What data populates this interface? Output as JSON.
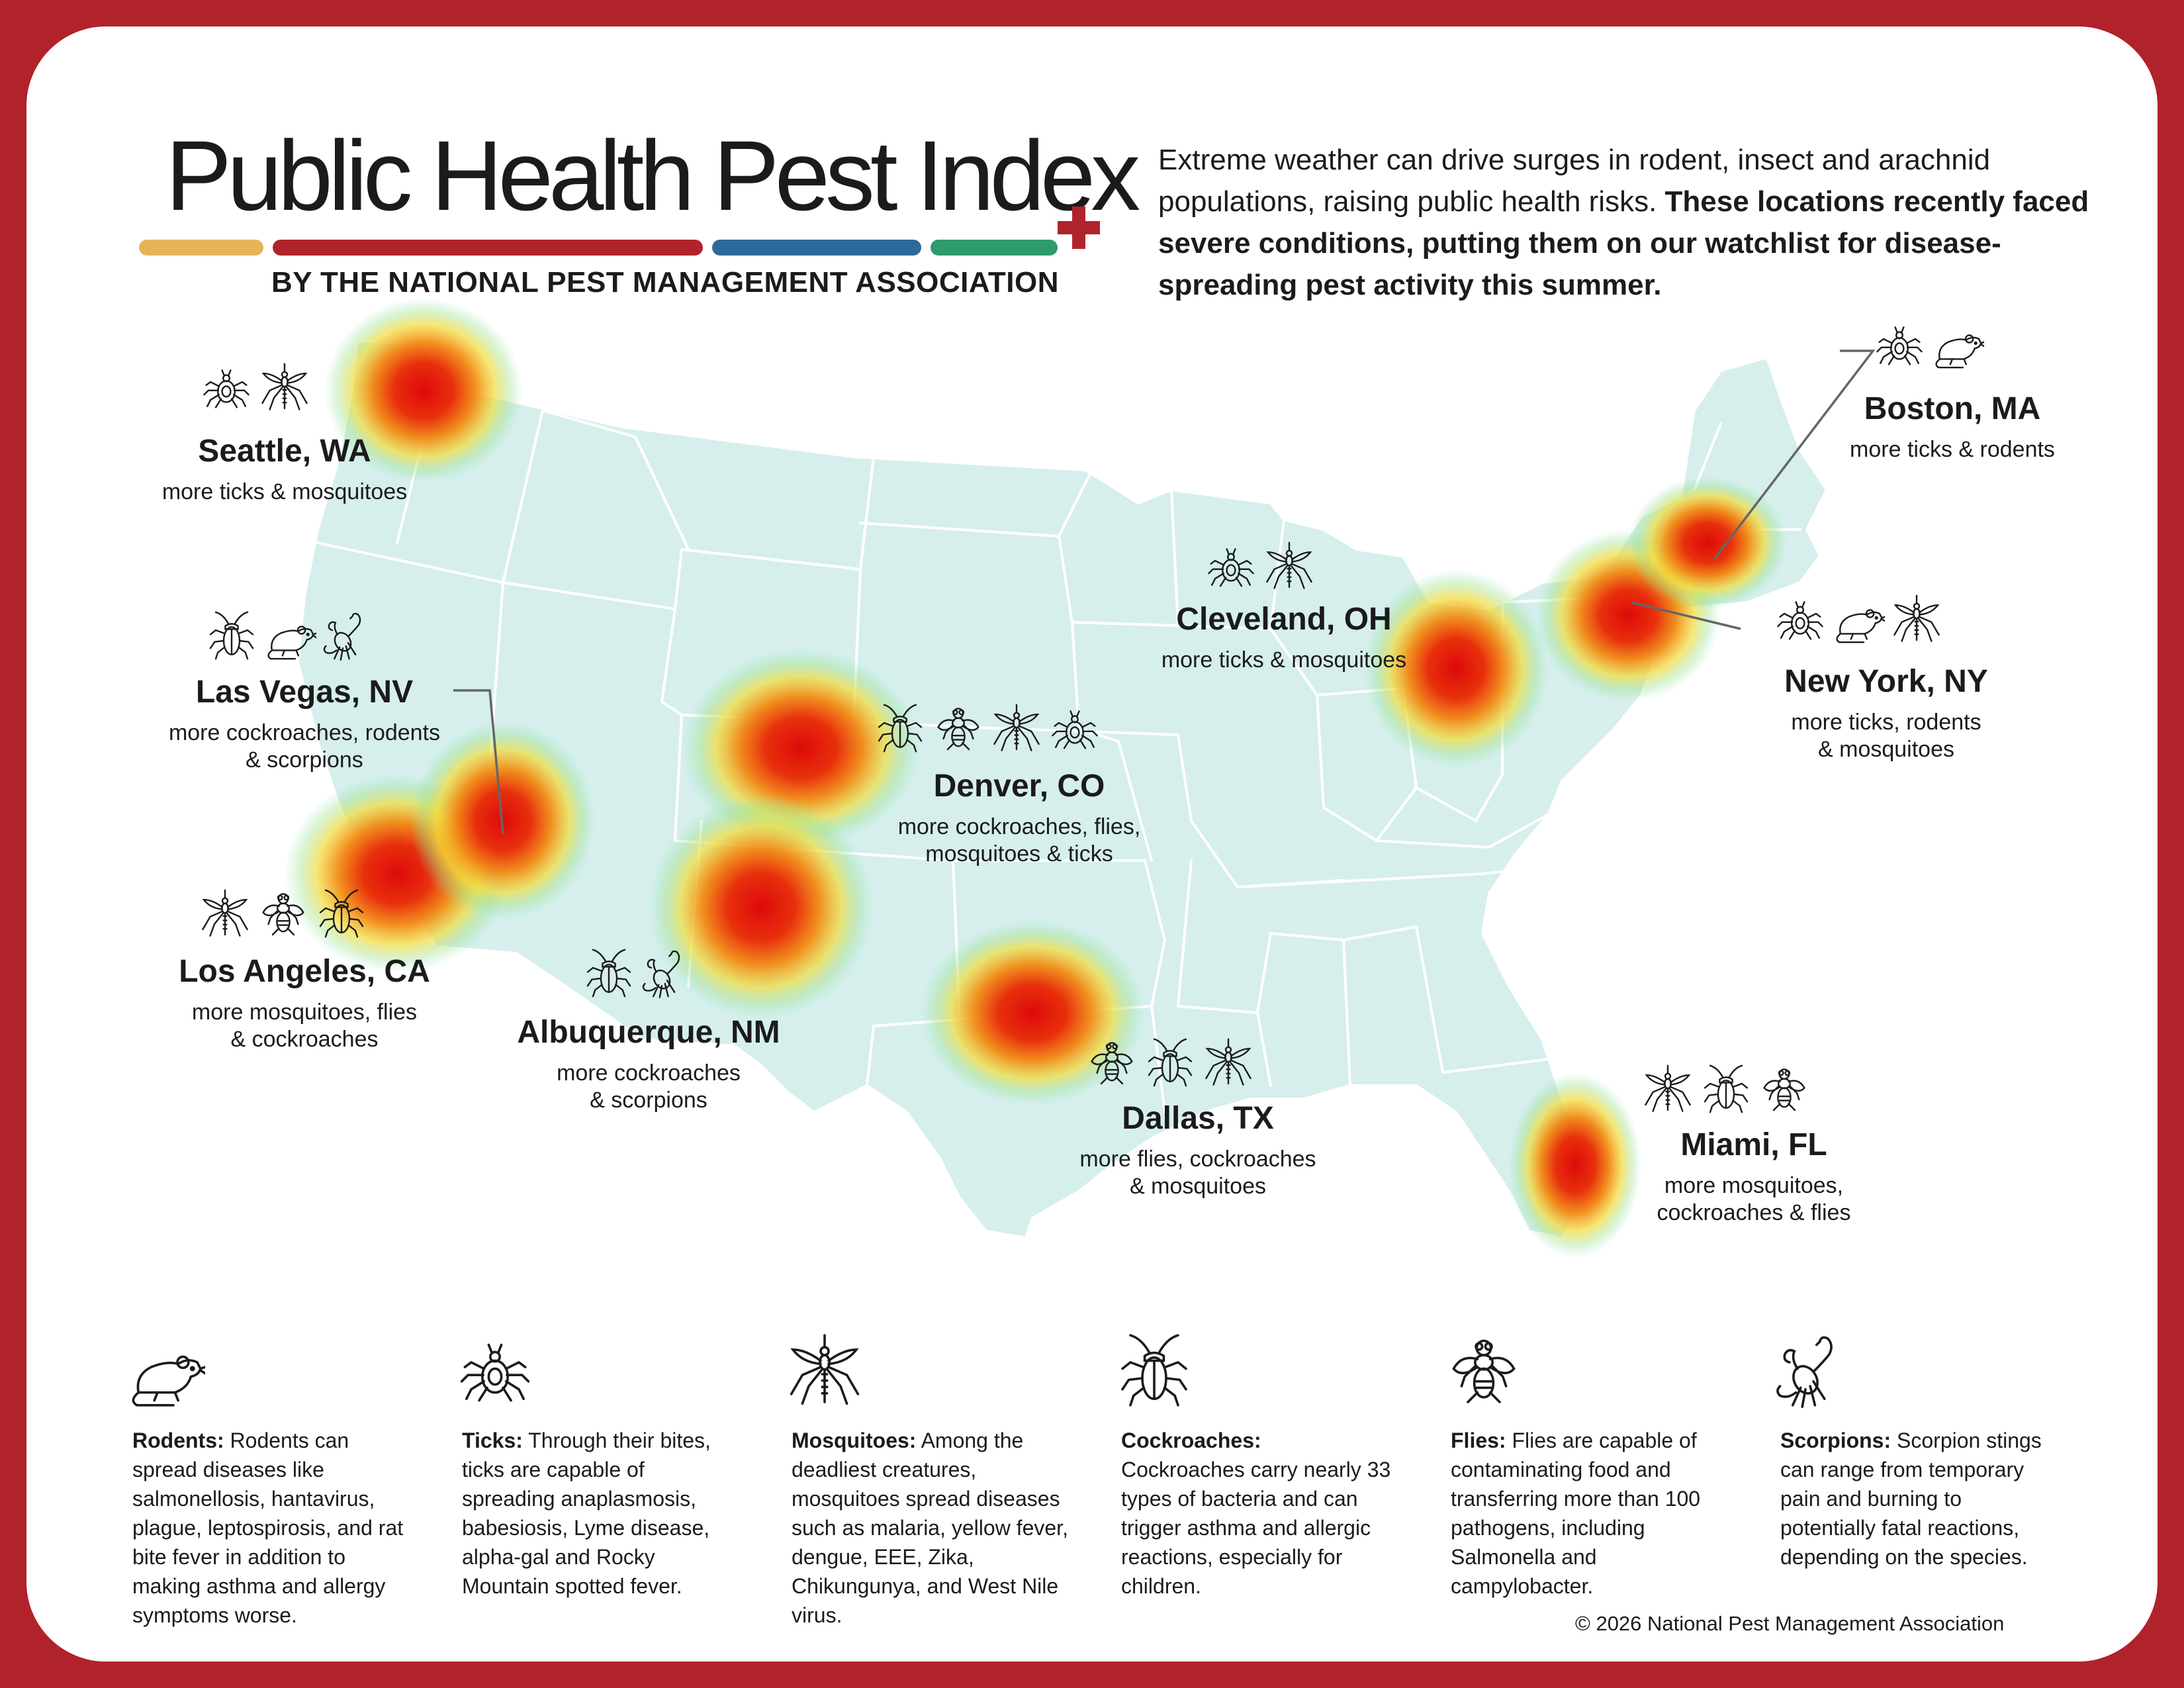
{
  "header": {
    "title": "Public Health Pest Index",
    "subtitle": "BY THE NATIONAL PEST MANAGEMENT ASSOCIATION",
    "intro_plain": "Extreme weather can drive surges in rodent, insect and arachnid populations, raising public health risks.",
    "intro_bold": "These locations recently faced severe conditions, putting them on our watchlist for disease-spreading pest activity this summer."
  },
  "colors": {
    "frame": "#b0232a",
    "bar_yellow": "#e8b45a",
    "bar_red": "#b0232a",
    "bar_blue": "#2d6a9a",
    "bar_green": "#2e9a6e",
    "map_fill": "#d6efec",
    "hotspot_core": "#dd0a0a"
  },
  "cities": [
    {
      "id": "seattle",
      "name": "Seattle, WA",
      "desc": "more ticks & mosquitoes",
      "pests": [
        "tick-icon",
        "mosquito-icon"
      ]
    },
    {
      "id": "boston",
      "name": "Boston, MA",
      "desc": "more ticks & rodents",
      "pests": [
        "tick-icon",
        "rodent-icon"
      ]
    },
    {
      "id": "cleveland",
      "name": "Cleveland, OH",
      "desc": "more ticks & mosquitoes",
      "pests": [
        "tick-icon",
        "mosquito-icon"
      ]
    },
    {
      "id": "newyork",
      "name": "New York, NY",
      "desc": "more ticks, rodents\n& mosquitoes",
      "pests": [
        "tick-icon",
        "rodent-icon",
        "mosquito-icon"
      ]
    },
    {
      "id": "lasvegas",
      "name": "Las Vegas, NV",
      "desc": "more cockroaches, rodents\n& scorpions",
      "pests": [
        "cockroach-icon",
        "rodent-icon",
        "scorpion-icon"
      ]
    },
    {
      "id": "denver",
      "name": "Denver, CO",
      "desc": "more cockroaches, flies,\nmosquitoes & ticks",
      "pests": [
        "cockroach-icon",
        "fly-icon",
        "mosquito-icon",
        "tick-icon"
      ]
    },
    {
      "id": "losangeles",
      "name": "Los Angeles, CA",
      "desc": "more mosquitoes, flies\n& cockroaches",
      "pests": [
        "mosquito-icon",
        "fly-icon",
        "cockroach-icon"
      ]
    },
    {
      "id": "albuquerque",
      "name": "Albuquerque, NM",
      "desc": "more cockroaches\n& scorpions",
      "pests": [
        "cockroach-icon",
        "scorpion-icon"
      ]
    },
    {
      "id": "dallas",
      "name": "Dallas, TX",
      "desc": "more flies, cockroaches\n& mosquitoes",
      "pests": [
        "fly-icon",
        "cockroach-icon",
        "mosquito-icon"
      ]
    },
    {
      "id": "miami",
      "name": "Miami, FL",
      "desc": "more mosquitoes,\ncockroaches & flies",
      "pests": [
        "mosquito-icon",
        "cockroach-icon",
        "fly-icon"
      ]
    }
  ],
  "legend": [
    {
      "icon": "rodent-icon",
      "name": "Rodents:",
      "text": "Rodents can spread diseases like salmonellosis, hantavirus, plague, leptospirosis, and rat bite fever in addition to making asthma and allergy symptoms worse."
    },
    {
      "icon": "tick-icon",
      "name": "Ticks:",
      "text": "Through their bites, ticks are capable of spreading anaplasmosis, babesiosis, Lyme disease, alpha-gal and Rocky Mountain spotted fever."
    },
    {
      "icon": "mosquito-icon",
      "name": "Mosquitoes:",
      "text": "Among the deadliest creatures, mosquitoes spread diseases such as malaria, yellow fever, dengue, EEE, Zika, Chikungunya, and West Nile virus."
    },
    {
      "icon": "cockroach-icon",
      "name": "Cockroaches:",
      "text": "Cockroaches carry nearly 33 types of bacteria and can trigger asthma and allergic reactions, especially for children."
    },
    {
      "icon": "fly-icon",
      "name": "Flies:",
      "text": "Flies are capable of contaminating food and transferring more than 100 pathogens, including Salmonella and campylobacter."
    },
    {
      "icon": "scorpion-icon",
      "name": "Scorpions:",
      "text": "Scorpion stings can range from temporary pain and burning to potentially fatal reactions, depending on the species."
    }
  ],
  "footer": {
    "copyright": "© 2026 National Pest Management Association"
  }
}
